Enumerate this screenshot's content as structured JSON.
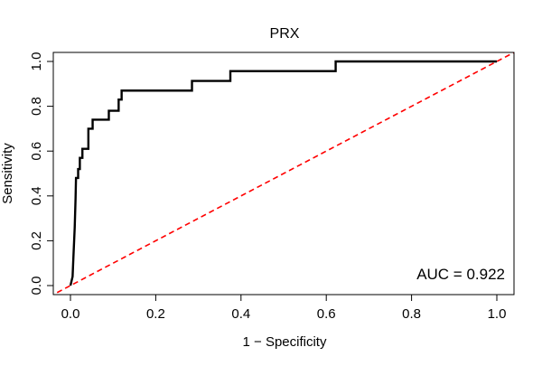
{
  "chart_data": {
    "type": "line",
    "title": "PRX",
    "xlabel": "1 − Specificity",
    "ylabel": "Sensitivity",
    "xlim": [
      0,
      1
    ],
    "ylim": [
      0,
      1
    ],
    "x_ticks": [
      0.0,
      0.2,
      0.4,
      0.6,
      0.8,
      1.0
    ],
    "x_tick_labels": [
      "0.0",
      "0.2",
      "0.4",
      "0.6",
      "0.8",
      "1.0"
    ],
    "y_ticks": [
      0.0,
      0.2,
      0.4,
      0.6,
      0.8,
      1.0
    ],
    "y_tick_labels": [
      "0.0",
      "0.2",
      "0.4",
      "0.6",
      "0.8",
      "1.0"
    ],
    "grid": false,
    "annotation": "AUC = 0.922",
    "series": [
      {
        "color": "#000000",
        "style": "solid",
        "points": [
          [
            0.0,
            0.0
          ],
          [
            0.005,
            0.04
          ],
          [
            0.007,
            0.13
          ],
          [
            0.01,
            0.26
          ],
          [
            0.012,
            0.39
          ],
          [
            0.013,
            0.48
          ],
          [
            0.018,
            0.48
          ],
          [
            0.018,
            0.52
          ],
          [
            0.022,
            0.52
          ],
          [
            0.022,
            0.57
          ],
          [
            0.028,
            0.57
          ],
          [
            0.028,
            0.61
          ],
          [
            0.042,
            0.61
          ],
          [
            0.042,
            0.65
          ],
          [
            0.042,
            0.7
          ],
          [
            0.052,
            0.7
          ],
          [
            0.052,
            0.74
          ],
          [
            0.09,
            0.74
          ],
          [
            0.09,
            0.78
          ],
          [
            0.113,
            0.78
          ],
          [
            0.113,
            0.83
          ],
          [
            0.12,
            0.83
          ],
          [
            0.12,
            0.87
          ],
          [
            0.285,
            0.87
          ],
          [
            0.285,
            0.913
          ],
          [
            0.375,
            0.913
          ],
          [
            0.375,
            0.957
          ],
          [
            0.622,
            0.957
          ],
          [
            0.622,
            1.0
          ],
          [
            1.0,
            1.0
          ]
        ]
      },
      {
        "color": "#ff0000",
        "style": "dashed",
        "points": [
          [
            -0.05,
            -0.05
          ],
          [
            1.05,
            1.05
          ]
        ]
      }
    ]
  }
}
